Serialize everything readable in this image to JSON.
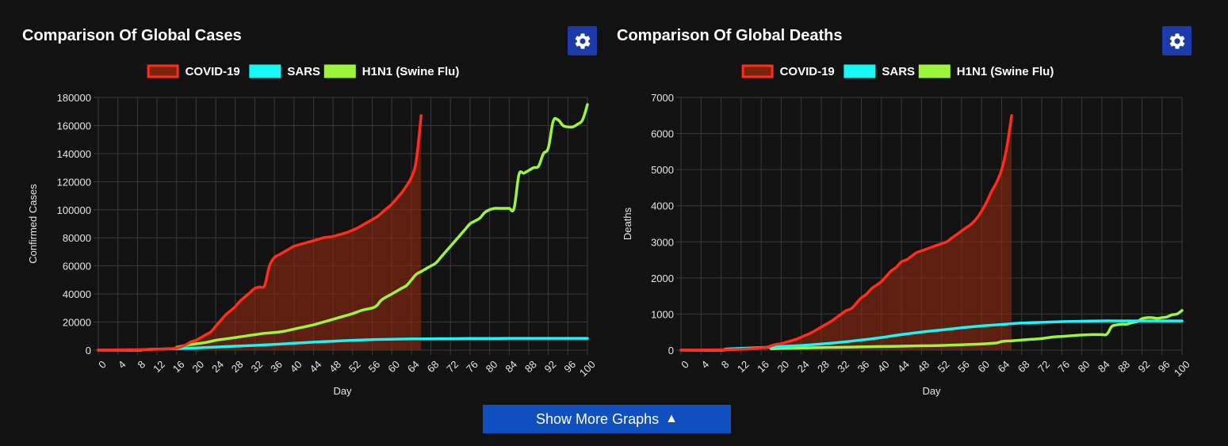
{
  "colors": {
    "background": "#121212",
    "grid": "#3a3a3a",
    "covid": "#ff2d1a",
    "covid_fill": "rgba(140,40,15,0.62)",
    "sars": "#17f7f7",
    "h1n1": "#9cf53a",
    "button": "#0f4fbf",
    "gear_button": "#1c3aa9"
  },
  "show_more": {
    "label": "Show More Graphs",
    "arrow": "▲"
  },
  "chart_data": [
    {
      "type": "line",
      "title": "Comparison Of Global Cases",
      "xlabel": "Day",
      "ylabel": "Confirmed Cases",
      "xlim": [
        0,
        100
      ],
      "ylim": [
        0,
        180000
      ],
      "x_ticks": [
        "0",
        "4",
        "8",
        "12",
        "16",
        "20",
        "24",
        "28",
        "32",
        "36",
        "40",
        "44",
        "48",
        "52",
        "56",
        "60",
        "64",
        "68",
        "72",
        "76",
        "80",
        "84",
        "88",
        "92",
        "96",
        "100"
      ],
      "y_ticks": [
        "0",
        "20000",
        "40000",
        "60000",
        "80000",
        "100000",
        "120000",
        "140000",
        "160000",
        "180000"
      ],
      "grid": true,
      "legend_position": "top",
      "series": [
        {
          "name": "COVID-19",
          "color_key": "covid",
          "filled": true,
          "x": [
            0,
            4,
            8,
            12,
            14,
            16,
            17,
            18,
            19,
            20,
            21,
            22,
            23,
            24,
            25,
            26,
            27,
            28,
            29,
            30,
            31,
            32,
            33,
            34,
            35,
            36,
            37,
            38,
            39,
            40,
            41,
            42,
            43,
            44,
            45,
            46,
            47,
            48,
            49,
            50,
            51,
            52,
            53,
            54,
            55,
            56,
            57,
            58,
            59,
            60,
            61,
            62,
            63,
            64,
            65,
            66
          ],
          "y": [
            0,
            200,
            300,
            600,
            900,
            1500,
            2500,
            4000,
            6000,
            7000,
            9000,
            11000,
            13000,
            17000,
            21000,
            25000,
            28000,
            31000,
            35000,
            38000,
            41000,
            44000,
            45000,
            46000,
            60000,
            66000,
            68000,
            70000,
            72000,
            74000,
            75000,
            76000,
            77000,
            78000,
            79000,
            80000,
            80500,
            81000,
            82000,
            83000,
            84000,
            85500,
            87000,
            89000,
            91000,
            93000,
            95000,
            98000,
            101000,
            104000,
            108000,
            112000,
            117000,
            123000,
            135000,
            167000
          ]
        },
        {
          "name": "SARS",
          "color_key": "sars",
          "filled": false,
          "x": [
            0,
            8,
            9,
            12,
            16,
            20,
            24,
            28,
            32,
            36,
            40,
            44,
            48,
            52,
            56,
            60,
            64,
            68,
            72,
            76,
            80,
            84,
            88,
            92,
            96,
            100
          ],
          "y": [
            0,
            0,
            300,
            700,
            1100,
            1600,
            2200,
            2800,
            3400,
            4100,
            4900,
            5700,
            6400,
            7000,
            7500,
            7800,
            8000,
            8100,
            8200,
            8300,
            8300,
            8400,
            8400,
            8400,
            8400,
            8400
          ]
        },
        {
          "name": "H1N1 (Swine Flu)",
          "color_key": "h1n1",
          "filled": false,
          "x": [
            16,
            18,
            20,
            22,
            24,
            26,
            28,
            30,
            32,
            34,
            36,
            38,
            40,
            42,
            44,
            46,
            48,
            50,
            52,
            54,
            56,
            57,
            58,
            60,
            61,
            62,
            63,
            64,
            65,
            66,
            67,
            68,
            69,
            70,
            71,
            72,
            73,
            74,
            75,
            76,
            77,
            78,
            79,
            80,
            81,
            82,
            83,
            84,
            85,
            86,
            87,
            88,
            89,
            90,
            91,
            92,
            93,
            94,
            95,
            96,
            97,
            98,
            99,
            100
          ],
          "y": [
            2000,
            3500,
            4500,
            5500,
            7000,
            8000,
            9000,
            10000,
            11000,
            12000,
            12500,
            13500,
            15000,
            16500,
            18000,
            20000,
            22000,
            24000,
            26000,
            28500,
            30000,
            32000,
            36000,
            40000,
            42000,
            44000,
            46000,
            50000,
            54000,
            56000,
            58000,
            60000,
            62000,
            66000,
            70000,
            74000,
            78000,
            82000,
            86000,
            90000,
            92000,
            94000,
            98000,
            100000,
            101000,
            101000,
            101000,
            101000,
            101000,
            125000,
            126000,
            128000,
            130000,
            131000,
            140000,
            144000,
            163000,
            164000,
            160000,
            159000,
            159000,
            161000,
            164000,
            175000
          ]
        }
      ]
    },
    {
      "type": "line",
      "title": "Comparison Of Global Deaths",
      "xlabel": "Day",
      "ylabel": "Deaths",
      "xlim": [
        0,
        100
      ],
      "ylim": [
        0,
        7000
      ],
      "x_ticks": [
        "0",
        "4",
        "8",
        "12",
        "16",
        "20",
        "24",
        "28",
        "32",
        "36",
        "40",
        "44",
        "48",
        "52",
        "56",
        "60",
        "64",
        "68",
        "72",
        "76",
        "80",
        "84",
        "88",
        "92",
        "96",
        "100"
      ],
      "y_ticks": [
        "0",
        "1000",
        "2000",
        "3000",
        "4000",
        "5000",
        "6000",
        "7000"
      ],
      "grid": true,
      "legend_position": "top",
      "series": [
        {
          "name": "COVID-19",
          "color_key": "covid",
          "filled": true,
          "x": [
            0,
            4,
            8,
            12,
            14,
            16,
            17,
            18,
            19,
            20,
            21,
            22,
            23,
            24,
            25,
            26,
            27,
            28,
            29,
            30,
            31,
            32,
            33,
            34,
            35,
            36,
            37,
            38,
            39,
            40,
            41,
            42,
            43,
            44,
            45,
            46,
            47,
            48,
            49,
            50,
            51,
            52,
            53,
            54,
            55,
            56,
            57,
            58,
            59,
            60,
            61,
            62,
            63,
            64,
            65,
            66
          ],
          "y": [
            0,
            5,
            10,
            25,
            40,
            60,
            80,
            120,
            160,
            180,
            220,
            260,
            300,
            360,
            420,
            480,
            560,
            640,
            720,
            800,
            900,
            1000,
            1100,
            1150,
            1300,
            1450,
            1550,
            1700,
            1800,
            1900,
            2050,
            2200,
            2300,
            2450,
            2500,
            2600,
            2700,
            2750,
            2800,
            2850,
            2900,
            2950,
            3000,
            3100,
            3200,
            3300,
            3400,
            3500,
            3650,
            3850,
            4100,
            4400,
            4650,
            5000,
            5600,
            6500
          ]
        },
        {
          "name": "SARS",
          "color_key": "sars",
          "filled": false,
          "x": [
            0,
            8,
            9,
            12,
            16,
            20,
            24,
            28,
            32,
            36,
            40,
            44,
            48,
            52,
            56,
            60,
            64,
            68,
            72,
            76,
            80,
            84,
            88,
            92,
            96,
            100
          ],
          "y": [
            0,
            0,
            30,
            50,
            70,
            100,
            130,
            170,
            220,
            280,
            350,
            430,
            500,
            560,
            620,
            670,
            710,
            750,
            770,
            790,
            800,
            810,
            810,
            810,
            810,
            810
          ]
        },
        {
          "name": "H1N1 (Swine Flu)",
          "color_key": "h1n1",
          "filled": false,
          "x": [
            18,
            20,
            24,
            28,
            32,
            36,
            40,
            44,
            48,
            52,
            56,
            60,
            63,
            64,
            66,
            68,
            70,
            72,
            74,
            76,
            78,
            80,
            82,
            84,
            85,
            86,
            87,
            88,
            89,
            90,
            91,
            92,
            93,
            94,
            95,
            96,
            97,
            98,
            99,
            100
          ],
          "y": [
            40,
            50,
            60,
            70,
            80,
            90,
            100,
            110,
            120,
            130,
            150,
            170,
            200,
            240,
            260,
            280,
            300,
            320,
            360,
            380,
            400,
            420,
            430,
            430,
            440,
            660,
            700,
            720,
            720,
            760,
            790,
            870,
            900,
            900,
            880,
            900,
            920,
            980,
            1000,
            1100
          ]
        }
      ]
    }
  ]
}
